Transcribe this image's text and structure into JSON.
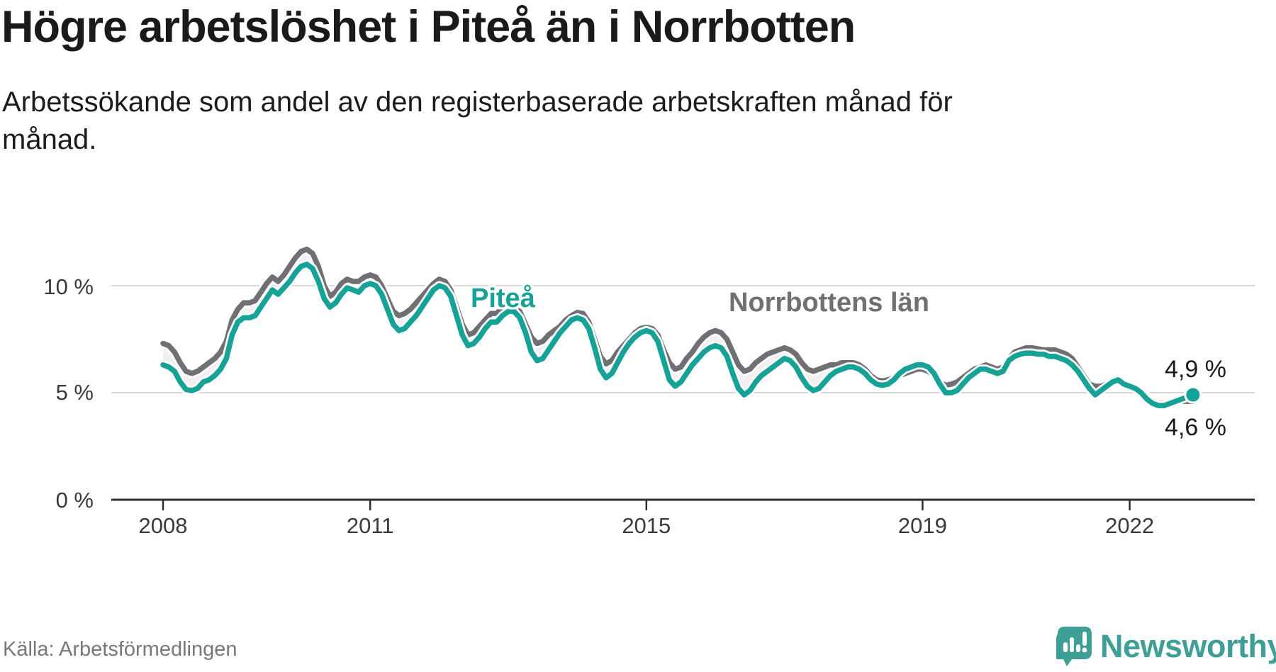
{
  "header": {
    "title": "Högre arbetslöshet i Piteå än i Norrbotten",
    "subtitle_line1": "Arbetssökande som andel av den registerbaserade arbetskraften månad för",
    "subtitle_line2": "månad."
  },
  "footer": {
    "source": "Källa: Arbetsförmedlingen",
    "logo_text": "Newsworthy",
    "logo_icon": "speech-bubble-bar-chart-exclamation"
  },
  "colors": {
    "pitea": "#16a296",
    "norrbotten": "#6f6f74",
    "area_fill": "#f0f0f2",
    "gridline": "#d8d8da",
    "axis": "#2e2e31",
    "end_dot": "#16a296",
    "logo": "#3d9f96"
  },
  "chart_data": {
    "type": "line",
    "title": "Högre arbetslöshet i Piteå än i Norrbotten",
    "subtitle": "Arbetssökande som andel av den registerbaserade arbetskraften månad för månad.",
    "unit": "%",
    "x_start": "2008-01",
    "x_end": "2022-12",
    "x_interval": "monthly",
    "x_ticks": [
      2008,
      2011,
      2015,
      2019,
      2022
    ],
    "x_tick_labels": [
      "2008",
      "2011",
      "2015",
      "2019",
      "2022"
    ],
    "y_ticks": [
      0,
      5,
      10
    ],
    "y_tick_labels": [
      "0 %",
      "5 %",
      "10 %"
    ],
    "ylim": [
      0,
      12
    ],
    "grid": "horizontal",
    "legend_position": "inline-labels",
    "end_labels": {
      "pitea": "4,9 %",
      "norrbotten": "4,6 %"
    },
    "end_values": {
      "pitea": 4.9,
      "norrbotten": 4.6
    },
    "series": [
      {
        "name": "Norrbottens län",
        "color": "#6f6f74",
        "values": [
          7.3,
          7.2,
          6.9,
          6.4,
          6.0,
          5.9,
          6.0,
          6.2,
          6.4,
          6.6,
          6.9,
          7.4,
          8.4,
          8.9,
          9.2,
          9.2,
          9.3,
          9.7,
          10.1,
          10.4,
          10.2,
          10.5,
          10.9,
          11.3,
          11.6,
          11.7,
          11.5,
          10.9,
          10.0,
          9.5,
          9.7,
          10.1,
          10.3,
          10.2,
          10.2,
          10.4,
          10.5,
          10.4,
          10.0,
          9.4,
          8.8,
          8.6,
          8.7,
          8.9,
          9.2,
          9.5,
          9.8,
          10.1,
          10.3,
          10.2,
          9.8,
          9.0,
          8.2,
          7.7,
          7.8,
          8.1,
          8.4,
          8.7,
          8.7,
          9.0,
          9.1,
          9.1,
          8.8,
          8.2,
          7.6,
          7.3,
          7.4,
          7.7,
          7.9,
          8.1,
          8.4,
          8.6,
          8.75,
          8.7,
          8.3,
          7.5,
          6.7,
          6.35,
          6.5,
          6.9,
          7.2,
          7.5,
          7.8,
          8.0,
          8.05,
          8.0,
          7.7,
          7.0,
          6.4,
          6.1,
          6.2,
          6.6,
          6.9,
          7.3,
          7.6,
          7.8,
          7.9,
          7.8,
          7.5,
          6.9,
          6.3,
          6.0,
          6.1,
          6.4,
          6.6,
          6.8,
          6.9,
          7.0,
          7.1,
          7.0,
          6.8,
          6.4,
          6.1,
          6.0,
          6.1,
          6.2,
          6.3,
          6.3,
          6.4,
          6.4,
          6.4,
          6.3,
          6.1,
          5.8,
          5.6,
          5.55,
          5.6,
          5.7,
          5.8,
          5.9,
          6.0,
          6.1,
          6.1,
          6.0,
          5.8,
          5.5,
          5.35,
          5.4,
          5.5,
          5.7,
          5.9,
          6.1,
          6.2,
          6.3,
          6.2,
          6.1,
          6.2,
          6.6,
          6.9,
          7.0,
          7.1,
          7.1,
          7.05,
          7.0,
          7.0,
          7.0,
          6.9,
          6.8,
          6.6,
          6.2,
          5.8,
          5.4,
          5.3,
          5.3,
          5.4,
          5.5,
          5.5,
          5.4,
          5.3,
          5.2,
          5.1,
          4.8,
          4.6,
          4.5,
          4.5,
          4.5,
          4.5,
          4.6,
          4.6,
          4.6
        ]
      },
      {
        "name": "Piteå",
        "color": "#16a296",
        "values": [
          6.3,
          6.2,
          6.0,
          5.5,
          5.15,
          5.1,
          5.2,
          5.5,
          5.6,
          5.8,
          6.1,
          6.6,
          7.7,
          8.3,
          8.5,
          8.5,
          8.6,
          9.0,
          9.4,
          9.8,
          9.6,
          9.9,
          10.2,
          10.6,
          10.9,
          11.0,
          10.8,
          10.2,
          9.4,
          9.0,
          9.2,
          9.6,
          9.9,
          9.8,
          9.7,
          10.0,
          10.1,
          10.0,
          9.6,
          8.9,
          8.2,
          7.9,
          8.0,
          8.3,
          8.6,
          9.0,
          9.4,
          9.8,
          10.0,
          9.9,
          9.5,
          8.6,
          7.7,
          7.2,
          7.3,
          7.6,
          8.0,
          8.3,
          8.3,
          8.6,
          8.8,
          8.8,
          8.5,
          7.8,
          6.9,
          6.5,
          6.6,
          7.0,
          7.4,
          7.8,
          8.1,
          8.4,
          8.5,
          8.4,
          8.0,
          7.1,
          6.1,
          5.7,
          5.9,
          6.4,
          6.9,
          7.3,
          7.6,
          7.8,
          7.9,
          7.8,
          7.4,
          6.5,
          5.6,
          5.3,
          5.5,
          5.9,
          6.3,
          6.6,
          6.9,
          7.1,
          7.2,
          7.1,
          6.7,
          5.9,
          5.2,
          4.9,
          5.1,
          5.5,
          5.8,
          6.0,
          6.2,
          6.4,
          6.6,
          6.5,
          6.2,
          5.7,
          5.3,
          5.1,
          5.2,
          5.5,
          5.8,
          6.0,
          6.1,
          6.2,
          6.2,
          6.1,
          5.9,
          5.6,
          5.4,
          5.35,
          5.4,
          5.6,
          5.9,
          6.1,
          6.2,
          6.3,
          6.3,
          6.2,
          5.9,
          5.4,
          5.0,
          5.0,
          5.1,
          5.4,
          5.7,
          5.9,
          6.1,
          6.1,
          6.0,
          5.9,
          6.0,
          6.5,
          6.7,
          6.8,
          6.85,
          6.85,
          6.8,
          6.8,
          6.7,
          6.7,
          6.6,
          6.5,
          6.3,
          6.0,
          5.6,
          5.2,
          4.9,
          5.1,
          5.3,
          5.5,
          5.6,
          5.4,
          5.3,
          5.2,
          5.0,
          4.7,
          4.5,
          4.4,
          4.4,
          4.5,
          4.6,
          4.7,
          4.8,
          4.9
        ]
      }
    ]
  }
}
